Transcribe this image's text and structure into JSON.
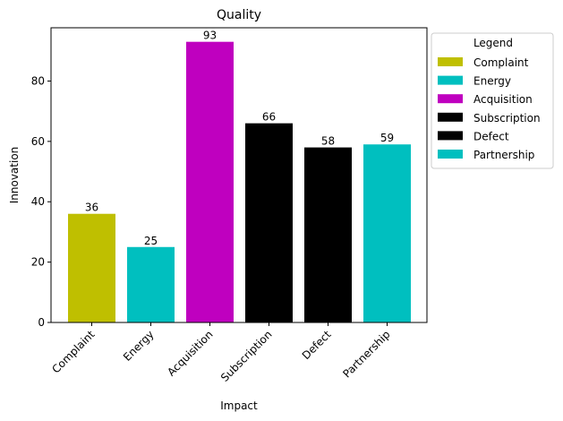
{
  "chart_data": {
    "type": "bar",
    "title": "Quality",
    "xlabel": "Impact",
    "ylabel": "Innovation",
    "ylim": [
      0,
      97.65
    ],
    "yticks": [
      0,
      20,
      40,
      60,
      80
    ],
    "categories": [
      "Complaint",
      "Energy",
      "Acquisition",
      "Subscription",
      "Defect",
      "Partnership"
    ],
    "values": [
      36,
      25,
      93,
      66,
      58,
      59
    ],
    "colors": [
      "#bfbf00",
      "#00bfbf",
      "#bf00bf",
      "#000000",
      "#000000",
      "#00bfbf"
    ],
    "legend": {
      "title": "Legend",
      "placement": "outside-top-right",
      "entries": [
        "Complaint",
        "Energy",
        "Acquisition",
        "Subscription",
        "Defect",
        "Partnership"
      ]
    },
    "grid": false
  }
}
